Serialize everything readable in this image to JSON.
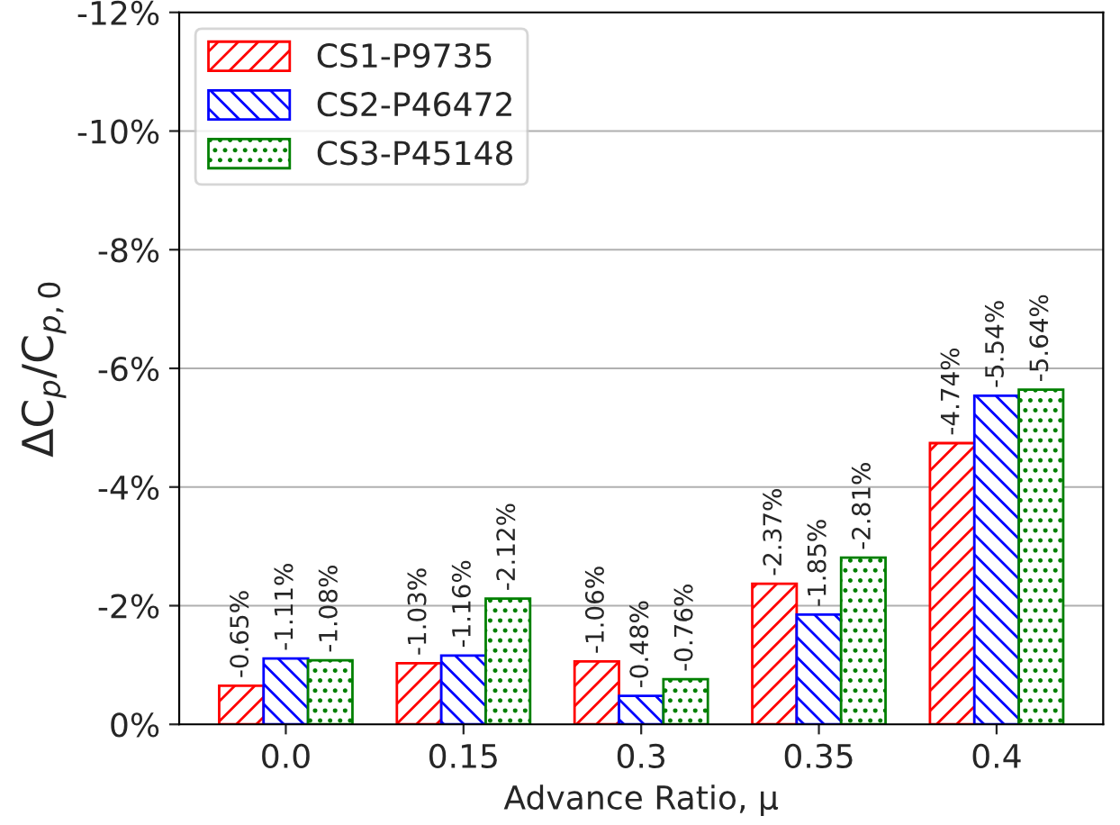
{
  "chart_data": {
    "type": "bar",
    "xlabel": "Advance Ratio, μ",
    "ylabel": "ΔC$_{p}$/C$_{p,0}$",
    "categories": [
      "0.0",
      "0.15",
      "0.3",
      "0.35",
      "0.4"
    ],
    "series": [
      {
        "name": "CS1-P9735",
        "color": "#ff0000",
        "values": [
          -0.65,
          -1.03,
          -1.06,
          -2.37,
          -4.74
        ],
        "value_labels": [
          "-0.65%",
          "-1.03%",
          "-1.06%",
          "-2.37%",
          "-4.74%"
        ]
      },
      {
        "name": "CS2-P46472",
        "color": "#0000ff",
        "values": [
          -1.11,
          -1.16,
          -0.48,
          -1.85,
          -5.54
        ],
        "value_labels": [
          "-1.11%",
          "-1.16%",
          "-0.48%",
          "-1.85%",
          "-5.54%"
        ]
      },
      {
        "name": "CS3-P45148",
        "color": "#008000",
        "values": [
          -1.08,
          -2.12,
          -0.76,
          -2.81,
          -5.64
        ],
        "value_labels": [
          "-1.08%",
          "-2.12%",
          "-0.76%",
          "-2.81%",
          "-5.64%"
        ]
      }
    ],
    "ylim": [
      0,
      -12
    ],
    "yticks": [
      {
        "value": 0,
        "label": "0%"
      },
      {
        "value": -2,
        "label": "-2%"
      },
      {
        "value": -4,
        "label": "-4%"
      },
      {
        "value": -6,
        "label": "-6%"
      },
      {
        "value": -8,
        "label": "-8%"
      },
      {
        "value": -10,
        "label": "-10%"
      },
      {
        "value": -12,
        "label": "-12%"
      }
    ],
    "grid": "y",
    "legend": "top left"
  }
}
